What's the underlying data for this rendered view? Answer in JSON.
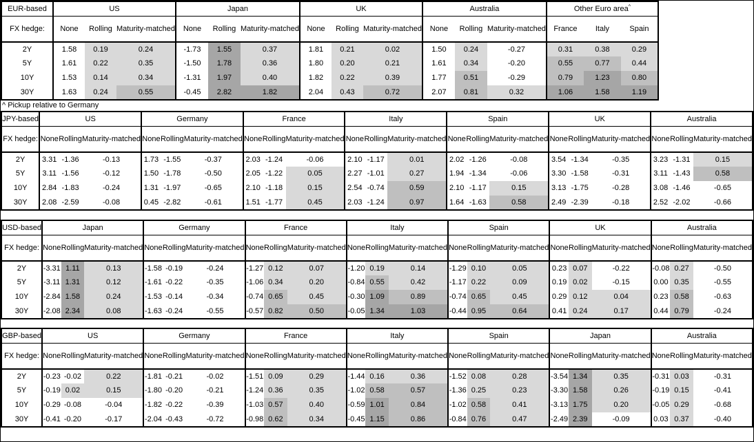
{
  "footnote": "^ Pickup relative to Germany",
  "fx_hedge_label": "FX hedge:",
  "maturity_labels": [
    "2Y",
    "5Y",
    "10Y",
    "30Y"
  ],
  "hedge_types": [
    "None",
    "Rolling",
    "Maturity-matched"
  ],
  "shade_colors": {
    "light": "#D9D9D9",
    "medium": "#BFBFBF",
    "dark": "#A6A6A6"
  },
  "shade_thresholds": {
    "light_min": 0,
    "medium_min": 0.5,
    "dark_min": 1.0
  },
  "tables": [
    {
      "base_label": "EUR-based",
      "groups": [
        {
          "name": "US",
          "values": [
            [
              "1.58",
              "0.19",
              "0.24"
            ],
            [
              "1.61",
              "0.22",
              "0.35"
            ],
            [
              "1.53",
              "0.14",
              "0.34"
            ],
            [
              "1.63",
              "0.24",
              "0.55"
            ]
          ]
        },
        {
          "name": "Japan",
          "values": [
            [
              "-1.73",
              "1.55",
              "0.37"
            ],
            [
              "-1.50",
              "1.78",
              "0.36"
            ],
            [
              "-1.31",
              "1.97",
              "0.40"
            ],
            [
              "-0.45",
              "2.82",
              "1.82"
            ]
          ]
        },
        {
          "name": "UK",
          "values": [
            [
              "1.81",
              "0.21",
              "0.02"
            ],
            [
              "1.80",
              "0.20",
              "0.21"
            ],
            [
              "1.82",
              "0.22",
              "0.39"
            ],
            [
              "2.04",
              "0.43",
              "0.72"
            ]
          ]
        },
        {
          "name": "Australia",
          "values": [
            [
              "1.50",
              "0.24",
              "-0.27"
            ],
            [
              "1.61",
              "0.34",
              "-0.20"
            ],
            [
              "1.77",
              "0.51",
              "-0.29"
            ],
            [
              "2.07",
              "0.81",
              "0.32"
            ]
          ]
        },
        {
          "name": "Other Euro area",
          "sup": "^",
          "columns": [
            "France",
            "Italy",
            "Spain"
          ],
          "shaded": [
            true,
            true,
            true
          ],
          "values": [
            [
              "0.31",
              "0.38",
              "0.29"
            ],
            [
              "0.55",
              "0.77",
              "0.44"
            ],
            [
              "0.79",
              "1.23",
              "0.80"
            ],
            [
              "1.06",
              "1.58",
              "1.19"
            ]
          ]
        }
      ]
    },
    {
      "base_label": "JPY-based",
      "groups": [
        {
          "name": "US",
          "values": [
            [
              "3.31",
              "-1.36",
              "-0.13"
            ],
            [
              "3.11",
              "-1.56",
              "-0.12"
            ],
            [
              "2.84",
              "-1.83",
              "-0.24"
            ],
            [
              "2.08",
              "-2.59",
              "-0.08"
            ]
          ]
        },
        {
          "name": "Germany",
          "values": [
            [
              "1.73",
              "-1.55",
              "-0.37"
            ],
            [
              "1.50",
              "-1.78",
              "-0.50"
            ],
            [
              "1.31",
              "-1.97",
              "-0.65"
            ],
            [
              "0.45",
              "-2.82",
              "-0.61"
            ]
          ]
        },
        {
          "name": "France",
          "values": [
            [
              "2.03",
              "-1.24",
              "-0.06"
            ],
            [
              "2.05",
              "-1.22",
              "0.05"
            ],
            [
              "2.10",
              "-1.18",
              "0.15"
            ],
            [
              "1.51",
              "-1.77",
              "0.45"
            ]
          ]
        },
        {
          "name": "Italy",
          "values": [
            [
              "2.10",
              "-1.17",
              "0.01"
            ],
            [
              "2.27",
              "-1.01",
              "0.27"
            ],
            [
              "2.54",
              "-0.74",
              "0.59"
            ],
            [
              "2.03",
              "-1.24",
              "0.97"
            ]
          ]
        },
        {
          "name": "Spain",
          "values": [
            [
              "2.02",
              "-1.26",
              "-0.08"
            ],
            [
              "1.94",
              "-1.34",
              "-0.06"
            ],
            [
              "2.10",
              "-1.17",
              "0.15"
            ],
            [
              "1.64",
              "-1.63",
              "0.58"
            ]
          ]
        },
        {
          "name": "UK",
          "values": [
            [
              "3.54",
              "-1.34",
              "-0.35"
            ],
            [
              "3.30",
              "-1.58",
              "-0.31"
            ],
            [
              "3.13",
              "-1.75",
              "-0.28"
            ],
            [
              "2.49",
              "-2.39",
              "-0.18"
            ]
          ]
        },
        {
          "name": "Australia",
          "values": [
            [
              "3.23",
              "-1.31",
              "0.15"
            ],
            [
              "3.11",
              "-1.43",
              "0.58"
            ],
            [
              "3.08",
              "-1.46",
              "-0.65"
            ],
            [
              "2.52",
              "-2.02",
              "-0.66"
            ]
          ]
        }
      ]
    },
    {
      "base_label": "USD-based",
      "groups": [
        {
          "name": "Japan",
          "values": [
            [
              "-3.31",
              "1.11",
              "0.13"
            ],
            [
              "-3.11",
              "1.31",
              "0.12"
            ],
            [
              "-2.84",
              "1.58",
              "0.24"
            ],
            [
              "-2.08",
              "2.34",
              "0.08"
            ]
          ]
        },
        {
          "name": "Germany",
          "values": [
            [
              "-1.58",
              "-0.19",
              "-0.24"
            ],
            [
              "-1.61",
              "-0.22",
              "-0.35"
            ],
            [
              "-1.53",
              "-0.14",
              "-0.34"
            ],
            [
              "-1.63",
              "-0.24",
              "-0.55"
            ]
          ]
        },
        {
          "name": "France",
          "values": [
            [
              "-1.27",
              "0.12",
              "0.07"
            ],
            [
              "-1.06",
              "0.34",
              "0.20"
            ],
            [
              "-0.74",
              "0.65",
              "0.45"
            ],
            [
              "-0.57",
              "0.82",
              "0.50"
            ]
          ]
        },
        {
          "name": "Italy",
          "values": [
            [
              "-1.20",
              "0.19",
              "0.14"
            ],
            [
              "-0.84",
              "0.55",
              "0.42"
            ],
            [
              "-0.30",
              "1.09",
              "0.89"
            ],
            [
              "-0.05",
              "1.34",
              "1.03"
            ]
          ]
        },
        {
          "name": "Spain",
          "values": [
            [
              "-1.29",
              "0.10",
              "0.05"
            ],
            [
              "-1.17",
              "0.22",
              "0.09"
            ],
            [
              "-0.74",
              "0.65",
              "0.45"
            ],
            [
              "-0.44",
              "0.95",
              "0.64"
            ]
          ]
        },
        {
          "name": "UK",
          "values": [
            [
              "0.23",
              "0.07",
              "-0.22"
            ],
            [
              "0.19",
              "0.02",
              "-0.15"
            ],
            [
              "0.29",
              "0.12",
              "0.04"
            ],
            [
              "0.41",
              "0.24",
              "0.17"
            ]
          ]
        },
        {
          "name": "Australia",
          "values": [
            [
              "-0.08",
              "0.27",
              "-0.50"
            ],
            [
              "0.00",
              "0.35",
              "-0.55"
            ],
            [
              "0.23",
              "0.58",
              "-0.63"
            ],
            [
              "0.44",
              "0.79",
              "-0.24"
            ]
          ]
        }
      ]
    },
    {
      "base_label": "GBP-based",
      "groups": [
        {
          "name": "US",
          "values": [
            [
              "-0.23",
              "-0.02",
              "0.22"
            ],
            [
              "-0.19",
              "0.02",
              "0.15"
            ],
            [
              "-0.29",
              "-0.08",
              "-0.04"
            ],
            [
              "-0.41",
              "-0.20",
              "-0.17"
            ]
          ]
        },
        {
          "name": "Germany",
          "values": [
            [
              "-1.81",
              "-0.21",
              "-0.02"
            ],
            [
              "-1.80",
              "-0.20",
              "-0.21"
            ],
            [
              "-1.82",
              "-0.22",
              "-0.39"
            ],
            [
              "-2.04",
              "-0.43",
              "-0.72"
            ]
          ]
        },
        {
          "name": "France",
          "values": [
            [
              "-1.51",
              "0.09",
              "0.29"
            ],
            [
              "-1.24",
              "0.36",
              "0.35"
            ],
            [
              "-1.03",
              "0.57",
              "0.40"
            ],
            [
              "-0.98",
              "0.62",
              "0.34"
            ]
          ]
        },
        {
          "name": "Italy",
          "values": [
            [
              "-1.44",
              "0.16",
              "0.36"
            ],
            [
              "-1.02",
              "0.58",
              "0.57"
            ],
            [
              "-0.59",
              "1.01",
              "0.84"
            ],
            [
              "-0.45",
              "1.15",
              "0.86"
            ]
          ]
        },
        {
          "name": "Spain",
          "values": [
            [
              "-1.52",
              "0.08",
              "0.28"
            ],
            [
              "-1.36",
              "0.25",
              "0.23"
            ],
            [
              "-1.02",
              "0.58",
              "0.41"
            ],
            [
              "-0.84",
              "0.76",
              "0.47"
            ]
          ]
        },
        {
          "name": "Japan",
          "values": [
            [
              "-3.54",
              "1.34",
              "0.35"
            ],
            [
              "-3.30",
              "1.58",
              "0.26"
            ],
            [
              "-3.13",
              "1.75",
              "0.20"
            ],
            [
              "-2.49",
              "2.39",
              "-0.09"
            ]
          ]
        },
        {
          "name": "Australia",
          "values": [
            [
              "-0.31",
              "0.03",
              "-0.31"
            ],
            [
              "-0.19",
              "0.15",
              "-0.41"
            ],
            [
              "-0.05",
              "0.29",
              "-0.68"
            ],
            [
              "0.03",
              "0.37",
              "-0.40"
            ]
          ]
        }
      ]
    }
  ]
}
